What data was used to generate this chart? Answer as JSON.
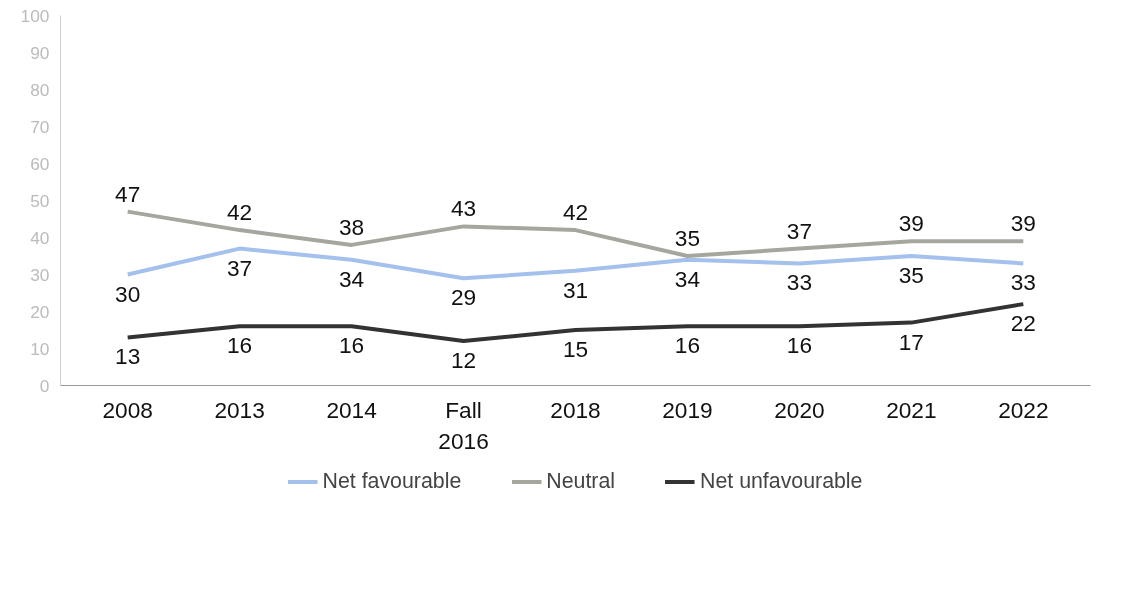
{
  "chart_data": {
    "type": "line",
    "categories": [
      "2008",
      "2013",
      "2014",
      "Fall 2016",
      "2018",
      "2019",
      "2020",
      "2021",
      "2022"
    ],
    "series": [
      {
        "name": "Net favourable",
        "color": "#a4c0ec",
        "values": [
          30,
          37,
          34,
          29,
          31,
          34,
          33,
          35,
          33
        ]
      },
      {
        "name": "Neutral",
        "color": "#a6a69e",
        "values": [
          47,
          42,
          38,
          43,
          42,
          35,
          37,
          39,
          39
        ]
      },
      {
        "name": "Net unfavourable",
        "color": "#333333",
        "values": [
          13,
          16,
          16,
          12,
          15,
          16,
          16,
          17,
          22
        ]
      }
    ],
    "ylim": [
      0,
      100
    ],
    "yticks": [
      0,
      10,
      20,
      30,
      40,
      50,
      60,
      70,
      80,
      90,
      100
    ],
    "data_labels": true,
    "grid": false,
    "legend": "bottom",
    "marker": "none",
    "line_style": "solid"
  }
}
